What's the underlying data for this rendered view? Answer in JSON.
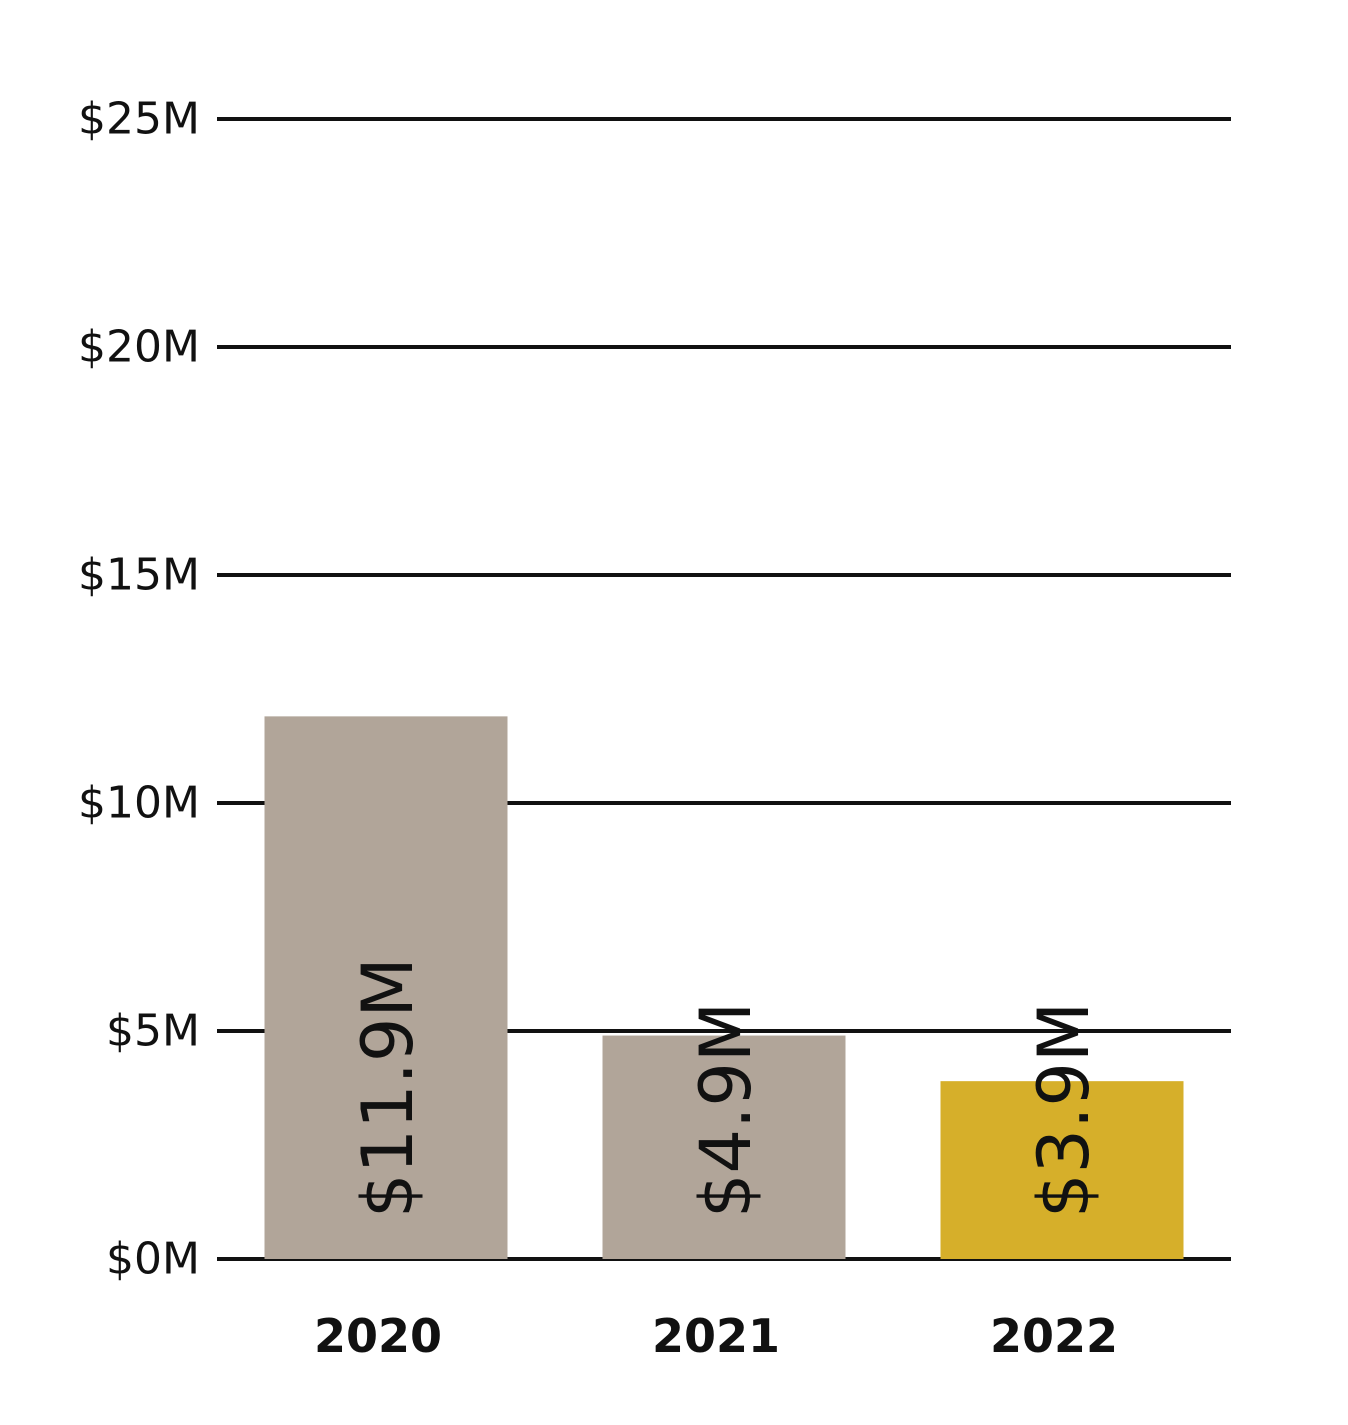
{
  "chart_data": {
    "type": "bar",
    "categories": [
      "2020",
      "2021",
      "2022"
    ],
    "values": [
      11.9,
      4.9,
      3.9
    ],
    "data_labels": [
      "$11.9M",
      "$4.9M",
      "$3.9M"
    ],
    "bar_colors": [
      "#b1a599",
      "#b1a599",
      "#d6af2a"
    ],
    "ylim": [
      0,
      25
    ],
    "y_ticks": [
      0,
      5,
      10,
      15,
      20,
      25
    ],
    "y_tick_labels": [
      "$0M",
      "$5M",
      "$10M",
      "$15M",
      "$20M",
      "$25M"
    ],
    "grid": true,
    "legend": "none"
  }
}
